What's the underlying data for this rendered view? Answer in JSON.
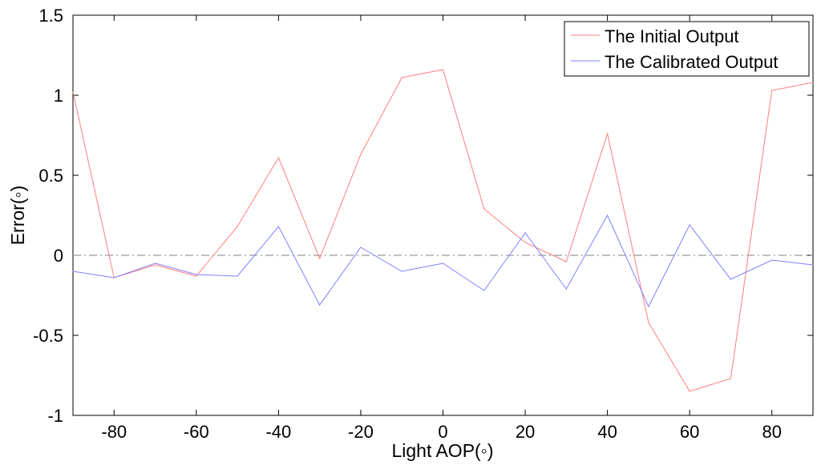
{
  "chart_data": {
    "type": "line",
    "xlabel": "Light AOP(◦)",
    "ylabel": "Error(◦)",
    "xlim": [
      -90,
      90
    ],
    "ylim": [
      -1,
      1.5
    ],
    "x_ticks": [
      -80,
      -60,
      -40,
      -20,
      0,
      20,
      40,
      60,
      80
    ],
    "y_ticks": [
      -1,
      -0.5,
      0,
      0.5,
      1,
      1.5
    ],
    "x_tick_labels": [
      "-80",
      "-60",
      "-40",
      "-20",
      "0",
      "20",
      "40",
      "60",
      "80"
    ],
    "y_tick_labels": [
      "-1",
      "-0.5",
      "0",
      "0.5",
      "1",
      "1.5"
    ],
    "grid": false,
    "legend_position": "top-right",
    "reference_line": {
      "y": 0,
      "style": "dash-dot",
      "color": "#808080"
    },
    "x": [
      -90,
      -80,
      -70,
      -60,
      -50,
      -40,
      -30,
      -20,
      -10,
      0,
      10,
      20,
      30,
      40,
      50,
      60,
      70,
      80,
      90
    ],
    "series": [
      {
        "name": "The Initial Output",
        "color": "#ff7f7f",
        "values": [
          1.02,
          -0.14,
          -0.06,
          -0.13,
          0.18,
          0.61,
          -0.02,
          0.63,
          1.11,
          1.16,
          0.29,
          0.08,
          -0.04,
          0.76,
          -0.42,
          -0.85,
          -0.77,
          1.03,
          1.08
        ]
      },
      {
        "name": "The Calibrated Output",
        "color": "#7f7fff",
        "values": [
          -0.1,
          -0.14,
          -0.05,
          -0.12,
          -0.13,
          0.18,
          -0.31,
          0.05,
          -0.1,
          -0.05,
          -0.22,
          0.14,
          -0.21,
          0.25,
          -0.32,
          0.19,
          -0.15,
          -0.03,
          -0.06
        ]
      }
    ]
  }
}
